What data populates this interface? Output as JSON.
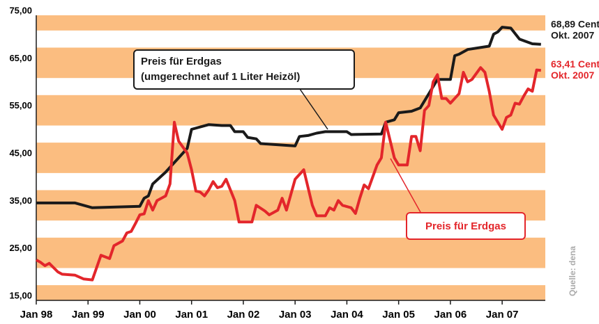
{
  "chart_data": {
    "type": "line",
    "xlim": [
      "1998-01",
      "2007-11"
    ],
    "xticks": [
      {
        "value": "1998-01",
        "label": "Jan 98"
      },
      {
        "value": "1999-01",
        "label": "Jan 99"
      },
      {
        "value": "2000-01",
        "label": "Jan 00"
      },
      {
        "value": "2001-01",
        "label": "Jan 01"
      },
      {
        "value": "2002-01",
        "label": "Jan 02"
      },
      {
        "value": "2003-01",
        "label": "Jan 03"
      },
      {
        "value": "2004-01",
        "label": "Jan 04"
      },
      {
        "value": "2005-01",
        "label": "Jan 05"
      },
      {
        "value": "2006-01",
        "label": "Jan 06"
      },
      {
        "value": "2007-01",
        "label": "Jan 07"
      }
    ],
    "ylim": [
      15,
      75
    ],
    "yticks": [
      {
        "value": 15,
        "label": "15,00"
      },
      {
        "value": 25,
        "label": "25,00"
      },
      {
        "value": 35,
        "label": "35,00"
      },
      {
        "value": 45,
        "label": "45,00"
      },
      {
        "value": 55,
        "label": "55,00"
      },
      {
        "value": 65,
        "label": "65,00"
      },
      {
        "value": 75,
        "label": "75,00"
      }
    ],
    "band_color": "#fbbd80",
    "source": "Quelle: dena",
    "series": [
      {
        "name": "Preis für Erdgas",
        "note": "(umgerechnet auf 1 Liter Heizöl)",
        "color": "#1a1a1a",
        "end_label": "68,89 Cent",
        "end_date": "Okt. 2007",
        "x": [
          "1998-01",
          "1998-10",
          "1999-02",
          "2000-01",
          "2000-02",
          "2000-03",
          "2000-04",
          "2000-07",
          "2000-10",
          "2000-12",
          "2001-01",
          "2001-05",
          "2001-08",
          "2001-10",
          "2001-11",
          "2002-01",
          "2002-02",
          "2002-04",
          "2002-05",
          "2003-01",
          "2003-02",
          "2003-04",
          "2003-06",
          "2003-08",
          "2004-01",
          "2004-02",
          "2004-09",
          "2004-10",
          "2004-12",
          "2005-01",
          "2005-04",
          "2005-06",
          "2005-09",
          "2005-10",
          "2006-01",
          "2006-02",
          "2006-03",
          "2006-05",
          "2006-10",
          "2006-11",
          "2006-12",
          "2007-01",
          "2007-03",
          "2007-05",
          "2007-08",
          "2007-10"
        ],
        "values": [
          35.5,
          35.5,
          34.5,
          34.8,
          36.5,
          37,
          39.5,
          42,
          45,
          47,
          51,
          52,
          51.8,
          51.8,
          50.5,
          50.5,
          49.3,
          49,
          48,
          47.5,
          49.5,
          49.7,
          50.2,
          50.5,
          50.5,
          49.9,
          50,
          52.5,
          53,
          54.5,
          54.8,
          55.5,
          60,
          61.5,
          61.5,
          66.5,
          66.8,
          67.8,
          68.5,
          71,
          71.5,
          72.5,
          72.3,
          70,
          69,
          68.89
        ]
      },
      {
        "name": "Preis für Erdgas",
        "color": "#e3262b",
        "end_label": "63,41 Cent",
        "end_date": "Okt. 2007",
        "x": [
          "1998-01",
          "1998-02",
          "1998-03",
          "1998-04",
          "1998-06",
          "1998-07",
          "1998-10",
          "1998-12",
          "1999-02",
          "1999-04",
          "1999-06",
          "1999-07",
          "1999-09",
          "1999-10",
          "1999-11",
          "1999-12",
          "2000-01",
          "2000-02",
          "2000-03",
          "2000-04",
          "2000-05",
          "2000-07",
          "2000-08",
          "2000-09",
          "2000-10",
          "2000-12",
          "2001-01",
          "2001-02",
          "2001-03",
          "2001-04",
          "2001-05",
          "2001-06",
          "2001-07",
          "2001-08",
          "2001-09",
          "2001-11",
          "2001-12",
          "2002-03",
          "2002-04",
          "2002-06",
          "2002-07",
          "2002-09",
          "2002-10",
          "2002-11",
          "2003-01",
          "2003-03",
          "2003-05",
          "2003-06",
          "2003-08",
          "2003-09",
          "2003-10",
          "2003-11",
          "2003-12",
          "2004-02",
          "2004-03",
          "2004-04",
          "2004-05",
          "2004-06",
          "2004-08",
          "2004-09",
          "2004-10",
          "2004-12",
          "2005-01",
          "2005-03",
          "2005-04",
          "2005-05",
          "2005-06",
          "2005-07",
          "2005-08",
          "2005-09",
          "2005-10",
          "2005-11",
          "2005-12",
          "2006-01",
          "2006-03",
          "2006-04",
          "2006-05",
          "2006-06",
          "2006-08",
          "2006-09",
          "2006-10",
          "2006-11",
          "2007-01",
          "2007-02",
          "2007-03",
          "2007-04",
          "2007-05",
          "2007-06",
          "2007-07",
          "2007-08",
          "2007-09",
          "2007-10"
        ],
        "values": [
          23.5,
          23,
          22.3,
          22.8,
          21,
          20.5,
          20.3,
          19.5,
          19.3,
          24.5,
          23.8,
          26.5,
          27.5,
          29.2,
          29.5,
          31.2,
          33,
          33.2,
          36,
          34,
          36,
          37,
          39.5,
          52.5,
          48.5,
          46,
          42.5,
          38,
          37.8,
          37,
          38.3,
          40,
          38.7,
          39,
          40.5,
          36,
          31.5,
          31.5,
          35,
          33.8,
          33,
          34,
          36.5,
          34,
          40.5,
          42.5,
          35,
          32.8,
          32.8,
          34.5,
          34,
          36,
          35,
          34.5,
          33.3,
          36.5,
          39.3,
          38.5,
          43.5,
          45,
          52.5,
          45,
          43.5,
          43.5,
          49.5,
          49.5,
          46.5,
          55,
          56,
          61,
          62.5,
          57.5,
          57.5,
          56.5,
          58.5,
          63,
          61,
          61.5,
          64,
          63,
          59,
          54,
          51,
          53.5,
          54,
          56.5,
          56.3,
          58,
          59.5,
          59,
          63.5,
          63.41
        ]
      }
    ]
  }
}
